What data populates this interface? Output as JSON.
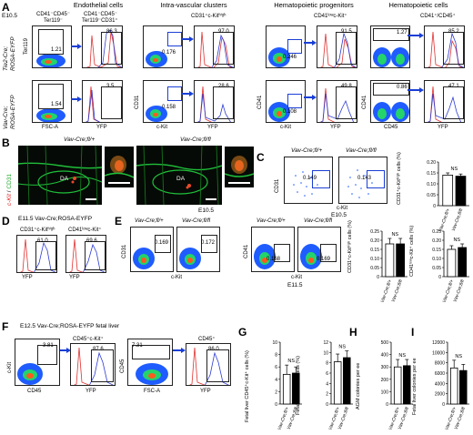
{
  "panels": {
    "A": "A",
    "B": "B",
    "C": "C",
    "D": "D",
    "E": "E",
    "F": "F",
    "G": "G",
    "H": "H",
    "I": "I"
  },
  "A": {
    "stage": "E10.5",
    "headers": {
      "endo": "Endothelial cells",
      "iac": "Intra-vascular clusters",
      "hp": "Hematopoietic progenitors",
      "hc": "Hematopoietic cells"
    },
    "subheaders": {
      "g1": "CD41⁻CD45⁻",
      "g1b": "Ter119⁻",
      "g2": "CD41⁻CD45⁻",
      "g2b": "Ter119⁻CD31⁺",
      "g3": "CD31⁺c-Kitʰⁱᵍʰ",
      "g4": "CD41ˡᵒʷc-Kit⁺",
      "g5": "CD41⁺/CD45⁺"
    },
    "row_labels": {
      "r1a": "Tie2-Cre;",
      "r1b": "ROSA-EYFP",
      "r2a": "Vav-Cre;",
      "r2b": "ROSA-EYFP"
    },
    "axes": {
      "ter119": "Ter119",
      "fsc": "FSC-A",
      "yfp": "YFP",
      "cd31": "CD31",
      "ckit": "c-Kit",
      "cd41": "CD41",
      "cd45": "CD45"
    },
    "values": {
      "r1_g1": "1.21",
      "r1_h1": "86.3",
      "r1_g2": "0.176",
      "r1_h2": "97.0",
      "r1_g3": "0.246",
      "r1_h3": "91.5",
      "r1_g4": "1.27",
      "r1_h4": "85.2",
      "r2_g1": "1.54",
      "r2_h1": "3.5",
      "r2_g2": "0.158",
      "r2_h2": "28.6",
      "r2_g3": "0.108",
      "r2_h3": "49.8",
      "r2_g4": "0.86",
      "r2_h4": "47.1"
    }
  },
  "B": {
    "left_title": "Vav-Cre;fl/+",
    "right_title": "Vav-Cre;fl/fl",
    "stage": "E10.5",
    "ylabel_red": "c-Kit",
    "ylabel_sep": " / ",
    "ylabel_green": "CD31",
    "da": "DA"
  },
  "C": {
    "left_title": "Vav-Cre;fl/+",
    "right_title": "Vav-Cre;fl/fl",
    "ylabel": "CD31",
    "xlabel": "c-Kit",
    "stage": "E10.5",
    "v1": "0.149",
    "v2": "0.143",
    "bar_ylabel": "CD31⁺c-Kitʰⁱᵍʰ cells (%)",
    "ns": "NS",
    "cats": [
      "Vav-Cre;fl/+",
      "Vav-Cre;fl/fl"
    ]
  },
  "D": {
    "title": "E11.5 Vav-Cre;ROSA-EYFP",
    "h1": "CD31⁺c-Kitʰⁱᵍʰ",
    "h2": "CD41ˡᵒʷc-Kit⁺",
    "v1": "61.0",
    "v2": "69.6",
    "x": "YFP"
  },
  "E": {
    "t1": "Vav-Cre;fl/+",
    "t2": "Vav-Cre;fl/fl",
    "t3": "Vav-Cre;fl/+",
    "t4": "Vav-Cre;fl/fl",
    "y1": "CD31",
    "y2": "CD41",
    "x": "c-Kit",
    "stage": "E11.5",
    "v1": "0.169",
    "v2": "0.172",
    "v3": "0.168",
    "v4": "0.169",
    "bar1_ylabel": "CD31⁺c-Kitʰⁱᵍʰ cells (%)",
    "bar2_ylabel": "CD41ˡᵒʷc-Kit⁺ cells (%)",
    "ns": "NS",
    "cats": [
      "Vav-Cre;fl/+",
      "Vav-Cre;fl/fl"
    ]
  },
  "F": {
    "title": "E12.5 Vav-Cre;ROSA-EYFP fetal liver",
    "h1": "CD45⁺c-Kit⁺",
    "h2": "CD45⁺",
    "y1": "c-Kit",
    "x1": "CD45",
    "y2": "CD45",
    "x2": "FSC-A",
    "xh": "YFP",
    "v1": "3.81",
    "v2": "87.6",
    "v3": "7.31",
    "v4": "86.0"
  },
  "G": {
    "ylabel1": "Fetal liver CD45⁺c-Kit⁺ cells (%)",
    "ylabel2": "Fetal liver CD45⁺ cells (%)",
    "ns": "NS",
    "cats": [
      "Vav-Cre;fl/+",
      "Vav-Cre;fl/fl"
    ]
  },
  "H": {
    "ylabel": "AGM colonies per ee",
    "ns": "NS",
    "cats": [
      "Vav-Cre;fl/+",
      "Vav-Cre;fl/fl"
    ]
  },
  "I": {
    "ylabel": "Fetal liver colonies per ee",
    "ns": "NS",
    "cats": [
      "Vav-Cre;fl/+",
      "Vav-Cre;fl/fl"
    ]
  },
  "chart_data": [
    {
      "id": "C",
      "type": "bar",
      "categories": [
        "Vav-Cre;fl/+",
        "Vav-Cre;fl/fl"
      ],
      "values": [
        0.14,
        0.135
      ],
      "errors": [
        0.01,
        0.01
      ],
      "ylim": [
        0,
        0.2
      ],
      "yticks": [
        "0",
        "0.05",
        "0.10",
        "0.15",
        "0.20"
      ],
      "fills": [
        "#ffffff",
        "#000000"
      ]
    },
    {
      "id": "E1",
      "type": "bar",
      "categories": [
        "Vav-Cre;fl/+",
        "Vav-Cre;fl/fl"
      ],
      "values": [
        0.18,
        0.18
      ],
      "errors": [
        0.03,
        0.03
      ],
      "ylim": [
        0,
        0.25
      ],
      "yticks": [
        "0",
        "0.05",
        "0.10",
        "0.15",
        "0.20",
        "0.25"
      ],
      "fills": [
        "#ffffff",
        "#000000"
      ]
    },
    {
      "id": "E2",
      "type": "bar",
      "categories": [
        "Vav-Cre;fl/+",
        "Vav-Cre;fl/fl"
      ],
      "values": [
        0.15,
        0.16
      ],
      "errors": [
        0.02,
        0.02
      ],
      "ylim": [
        0,
        0.25
      ],
      "yticks": [
        "0",
        "0.05",
        "0.10",
        "0.15",
        "0.20",
        "0.25"
      ],
      "fills": [
        "#ffffff",
        "#000000"
      ]
    },
    {
      "id": "G1",
      "type": "bar",
      "categories": [
        "Vav-Cre;fl/+",
        "Vav-Cre;fl/fl"
      ],
      "values": [
        4.8,
        5
      ],
      "errors": [
        1.5,
        1
      ],
      "ylim": [
        0,
        10
      ],
      "yticks": [
        "0",
        "2",
        "4",
        "6",
        "8",
        "10"
      ],
      "fills": [
        "#ffffff",
        "#000000"
      ]
    },
    {
      "id": "G2",
      "type": "bar",
      "categories": [
        "Vav-Cre;fl/+",
        "Vav-Cre;fl/fl"
      ],
      "values": [
        8.2,
        9
      ],
      "errors": [
        1.5,
        1.3
      ],
      "ylim": [
        0,
        12
      ],
      "yticks": [
        "0",
        "2",
        "4",
        "6",
        "8",
        "10",
        "12"
      ],
      "fills": [
        "#ffffff",
        "#000000"
      ]
    },
    {
      "id": "H",
      "type": "bar",
      "categories": [
        "Vav-Cre;fl/+",
        "Vav-Cre;fl/fl"
      ],
      "values": [
        300,
        310
      ],
      "errors": [
        60,
        50
      ],
      "ylim": [
        0,
        500
      ],
      "yticks": [
        "0",
        "100",
        "200",
        "300",
        "400",
        "500"
      ],
      "fills": [
        "#ffffff",
        "#000000"
      ]
    },
    {
      "id": "I",
      "type": "bar",
      "categories": [
        "Vav-Cre;fl/+",
        "Vav-Cre;fl/fl"
      ],
      "values": [
        7000,
        6500
      ],
      "errors": [
        1500,
        1200
      ],
      "ylim": [
        0,
        12000
      ],
      "yticks": [
        "0",
        "2000",
        "4000",
        "6000",
        "8000",
        "10000",
        "12000"
      ],
      "fills": [
        "#ffffff",
        "#000000"
      ]
    }
  ]
}
